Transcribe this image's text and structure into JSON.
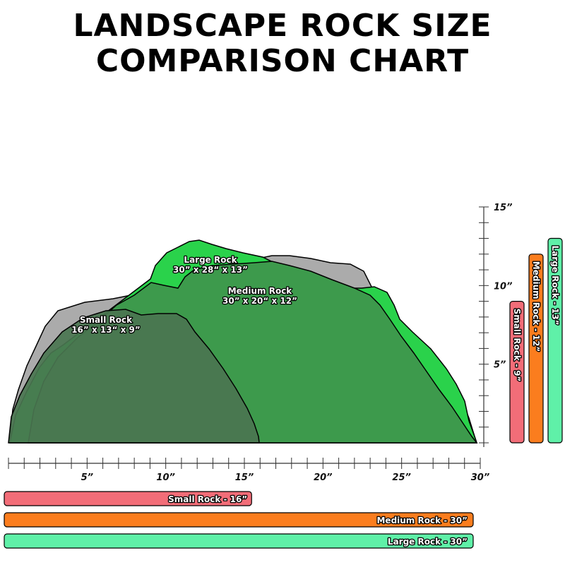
{
  "title": {
    "line1": "LANDSCAPE ROCK SIZE",
    "line2": "COMPARISON CHART"
  },
  "colors": {
    "small": "#f26d78",
    "medium": "#fb7d1e",
    "large": "#5ff0a8",
    "large_silhouette": "#2ad24b",
    "medium_silhouette": "#3d9a4c",
    "small_silhouette": "#4a7550",
    "background_rock": "#9c9c9c"
  },
  "chart_data": {
    "type": "bar",
    "x_axis": {
      "range": [
        0,
        30
      ],
      "minor_tick_step": 1,
      "labels": [
        {
          "value": 5,
          "text": "5”"
        },
        {
          "value": 10,
          "text": "10”"
        },
        {
          "value": 15,
          "text": "15”"
        },
        {
          "value": 20,
          "text": "20”"
        },
        {
          "value": 25,
          "text": "25”"
        },
        {
          "value": 30,
          "text": "30”"
        }
      ]
    },
    "y_axis": {
      "range": [
        0,
        15
      ],
      "minor_tick_step": 1,
      "labels": [
        {
          "value": 5,
          "text": "5”"
        },
        {
          "value": 10,
          "text": "10”"
        },
        {
          "value": 15,
          "text": "15”"
        }
      ]
    },
    "rocks": [
      {
        "key": "large",
        "name": "Large Rock",
        "dimensions": "30” x 28“ x 13”",
        "length": 30,
        "width": 28,
        "height": 13
      },
      {
        "key": "medium",
        "name": "Medium Rock",
        "dimensions": "30” x 20“ x 12”",
        "length": 30,
        "width": 20,
        "height": 12
      },
      {
        "key": "small",
        "name": "Small Rock",
        "dimensions": "16” x 13“ x 9”",
        "length": 16,
        "width": 13,
        "height": 9
      }
    ],
    "length_bars": [
      {
        "key": "small",
        "label": "Small Rock - 16”",
        "value": 16
      },
      {
        "key": "medium",
        "label": "Medium Rock - 30”",
        "value": 30
      },
      {
        "key": "large",
        "label": "Large Rock - 30”",
        "value": 30
      }
    ],
    "height_bars": [
      {
        "key": "small",
        "label": "Small Rock - 9”",
        "value": 9
      },
      {
        "key": "medium",
        "label": "Medium Rock - 12”",
        "value": 12
      },
      {
        "key": "large",
        "label": "Large Rock - 13”",
        "value": 13
      }
    ]
  }
}
